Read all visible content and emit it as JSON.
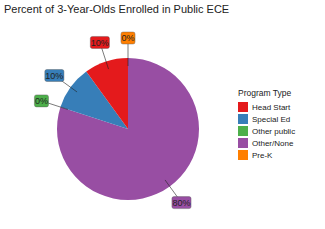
{
  "chart_data": {
    "type": "pie",
    "title": "Percent of 3-Year-Olds Enrolled in Public ECE",
    "legend_title": "Program Type",
    "categories": [
      "Head Start",
      "Special Ed",
      "Other public",
      "Other/None",
      "Pre-K"
    ],
    "values": [
      10,
      10,
      0,
      80,
      0
    ],
    "value_labels": [
      "10%",
      "10%",
      "0%",
      "80%",
      "0%"
    ],
    "colors": [
      "#e41a1c",
      "#377eb8",
      "#4daf4a",
      "#984ea3",
      "#ff7f00"
    ],
    "data_labels": true,
    "legend": "right"
  }
}
